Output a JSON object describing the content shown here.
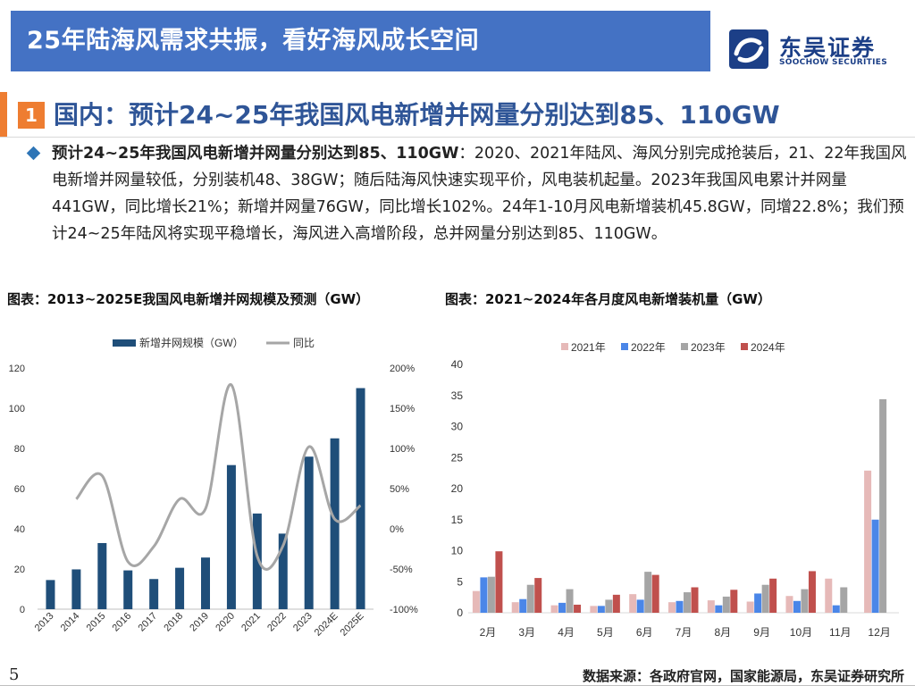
{
  "header": {
    "title": "25年陆海风需求共振，看好海风成长空间"
  },
  "logo": {
    "name_cn": "东吴证券",
    "name_en": "SOOCHOW SECURITIES"
  },
  "section": {
    "number": "1",
    "title": "国内：预计24~25年我国风电新增并网量分别达到85、110GW"
  },
  "bullet": {
    "lead": "预计24~25年我国风电新增并网量分别达到85、110GW",
    "body": "：2020、2021年陆风、海风分别完成抢装后，21、22年我国风电新增并网量较低，分别装机48、38GW；随后陆海风快速实现平价，风电装机起量。2023年我国风电累计并网量441GW，同比增长21%；新增并网量76GW，同比增长102%。24年1-10月风电新增装机45.8GW，同增22.8%；我们预计24~25年陆风将实现平稳增长，海风进入高增阶段，总并网量分别达到85、110GW。"
  },
  "chart_captions": {
    "left": "图表：2013~2025E我国风电新增并网规模及预测（GW）",
    "right": "图表：2021~2024年各月度风电新增装机量（GW）"
  },
  "footer": {
    "page_number": "5",
    "source": "数据来源：各政府官网，国家能源局，东吴证券研究所"
  },
  "colors": {
    "banner": "#4472c4",
    "accent_orange": "#ee7d31",
    "section_title": "#2f5597",
    "bar_navy": "#1f4e79",
    "line_gray": "#a6a6a6"
  },
  "chart_data": [
    {
      "type": "bar",
      "categories": [
        "2013",
        "2014",
        "2015",
        "2016",
        "2017",
        "2018",
        "2019",
        "2020",
        "2021",
        "2022",
        "2023",
        "2024E",
        "2025E"
      ],
      "series": [
        {
          "name": "新增并网规模（GW）",
          "type": "bar",
          "axis": "left",
          "color": "#1f4e79",
          "values": [
            14.5,
            19.8,
            32.9,
            19.3,
            15.0,
            20.6,
            25.7,
            71.7,
            47.6,
            37.6,
            75.9,
            85,
            110
          ]
        },
        {
          "name": "同比",
          "type": "line",
          "axis": "right",
          "color": "#a6a6a6",
          "values": [
            null,
            0.37,
            0.66,
            -0.41,
            -0.22,
            0.37,
            0.25,
            1.79,
            -0.34,
            -0.21,
            1.02,
            0.12,
            0.29
          ]
        }
      ],
      "ylim": [
        0,
        120
      ],
      "yticks": [
        0,
        20,
        40,
        60,
        80,
        100,
        120
      ],
      "y2lim": [
        -1,
        2
      ],
      "y2ticks": [
        "-100%",
        "-50%",
        "0%",
        "50%",
        "100%",
        "150%",
        "200%"
      ],
      "legend": "top-center",
      "grid": false
    },
    {
      "type": "bar",
      "categories": [
        "2月",
        "3月",
        "4月",
        "5月",
        "6月",
        "7月",
        "8月",
        "9月",
        "10月",
        "11月",
        "12月"
      ],
      "series": [
        {
          "name": "2021年",
          "color": "#e6b9b8",
          "values": [
            3.5,
            1.7,
            1.2,
            1.1,
            3.0,
            1.7,
            2.0,
            1.8,
            2.7,
            5.5,
            22.9
          ]
        },
        {
          "name": "2022年",
          "color": "#4a86e8",
          "values": [
            5.7,
            2.2,
            1.6,
            1.1,
            2.1,
            1.9,
            1.2,
            3.1,
            1.9,
            1.2,
            15.0
          ]
        },
        {
          "name": "2023年",
          "color": "#a5a5a5",
          "values": [
            5.8,
            4.5,
            3.8,
            2.1,
            6.6,
            3.3,
            2.6,
            4.5,
            3.8,
            4.1,
            34.4
          ]
        },
        {
          "name": "2024年",
          "color": "#c0504d",
          "values": [
            9.9,
            5.6,
            1.3,
            2.9,
            6.1,
            4.1,
            3.7,
            5.5,
            6.7,
            null,
            null
          ]
        }
      ],
      "ylim": [
        0,
        40
      ],
      "yticks": [
        0,
        5,
        10,
        15,
        20,
        25,
        30,
        35,
        40
      ],
      "legend": "top-center",
      "grid": false
    }
  ]
}
